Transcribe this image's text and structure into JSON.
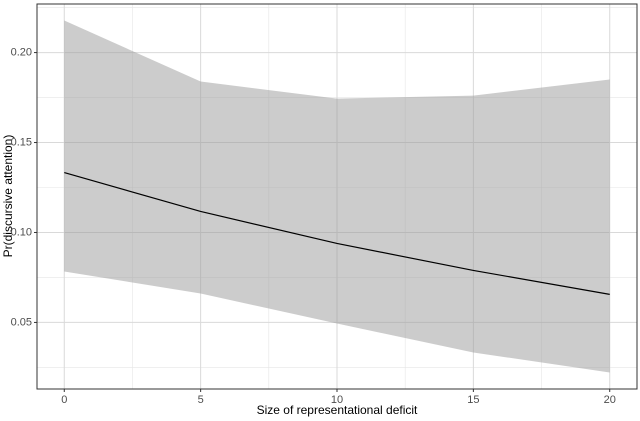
{
  "chart_data": {
    "type": "line",
    "x_label": "Size of representational deficit",
    "y_label": "Pr(discursive attention)",
    "x": [
      0,
      5,
      10,
      15,
      20
    ],
    "values": [
      0.1333,
      0.1117,
      0.0939,
      0.0789,
      0.0656
    ],
    "band_lower": [
      0.0783,
      0.0661,
      0.0494,
      0.0333,
      0.0222
    ],
    "band_upper": [
      0.2178,
      0.1839,
      0.1744,
      0.1761,
      0.185
    ],
    "color": "#000000",
    "band_color": "#999999",
    "xlim": [
      -1,
      21
    ],
    "ylim": [
      0.013,
      0.227
    ],
    "xticks": [
      0,
      5,
      10,
      15,
      20
    ],
    "yticks": [
      0.05,
      {
        "value": 0.1,
        "label": "0.10"
      },
      0.15,
      {
        "value": 0.2,
        "label": "0.20"
      }
    ],
    "xminor": [
      2.5,
      7.5,
      12.5,
      17.5
    ],
    "yminor": [
      0.025,
      0.075,
      0.125,
      0.175,
      0.225
    ],
    "grid": true
  }
}
